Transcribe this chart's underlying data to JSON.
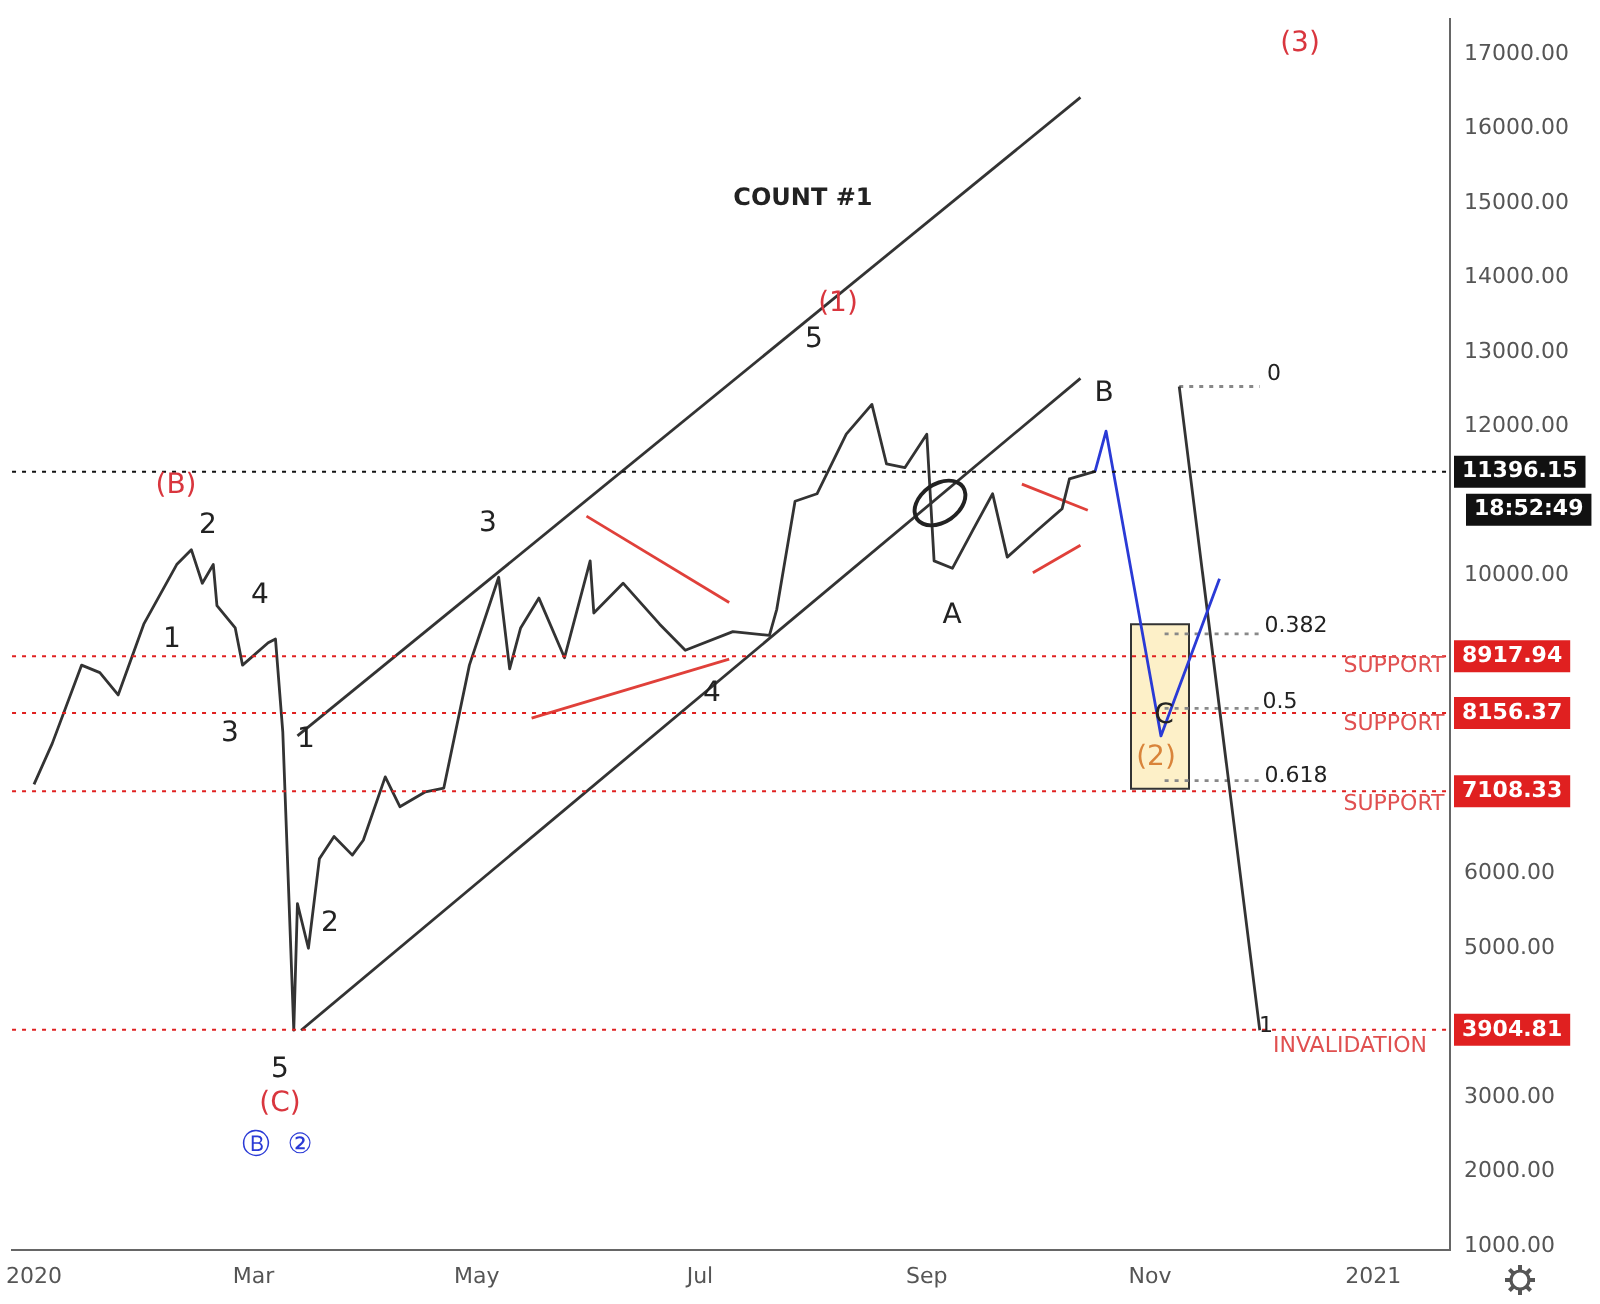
{
  "chart_data": {
    "type": "line",
    "title": "COUNT #1",
    "xlim": [
      "2019-12-26",
      "2021-01-22"
    ],
    "xticks": [
      {
        "value": "2020-01-01",
        "label": "2020"
      },
      {
        "value": "2020-03-01",
        "label": "Mar"
      },
      {
        "value": "2020-05-01",
        "label": "May"
      },
      {
        "value": "2020-07-01",
        "label": "Jul"
      },
      {
        "value": "2020-09-01",
        "label": "Sep"
      },
      {
        "value": "2020-11-01",
        "label": "Nov"
      },
      {
        "value": "2021-01-01",
        "label": "2021"
      }
    ],
    "ylim": [
      950,
      17470
    ],
    "yticks": [
      {
        "value": 1000,
        "label": "1000.00"
      },
      {
        "value": 2000,
        "label": "2000.00"
      },
      {
        "value": 3000,
        "label": "3000.00"
      },
      {
        "value": 5000,
        "label": "5000.00"
      },
      {
        "value": 6000,
        "label": "6000.00"
      },
      {
        "value": 10000,
        "label": "10000.00"
      },
      {
        "value": 12000,
        "label": "12000.00"
      },
      {
        "value": 13000,
        "label": "13000.00"
      },
      {
        "value": 14000,
        "label": "14000.00"
      },
      {
        "value": 15000,
        "label": "15000.00"
      },
      {
        "value": 16000,
        "label": "16000.00"
      },
      {
        "value": 17000,
        "label": "17000.00"
      }
    ],
    "grid": false,
    "legend": false,
    "marker": "none",
    "series": [
      {
        "color": "#333333",
        "x": [
          "2020-01-01",
          "2020-01-06",
          "2020-01-14",
          "2020-01-19",
          "2020-01-24",
          "2020-01-31",
          "2020-02-09",
          "2020-02-13",
          "2020-02-16",
          "2020-02-19",
          "2020-02-20",
          "2020-02-25",
          "2020-02-27",
          "2020-03-05",
          "2020-03-07",
          "2020-03-09",
          "2020-03-12",
          "2020-03-13",
          "2020-03-16",
          "2020-03-19",
          "2020-03-23",
          "2020-03-28",
          "2020-03-31",
          "2020-04-06",
          "2020-04-10",
          "2020-04-17",
          "2020-04-22",
          "2020-04-29",
          "2020-05-07",
          "2020-05-10",
          "2020-05-13",
          "2020-05-18",
          "2020-05-25",
          "2020-06-01",
          "2020-06-02",
          "2020-06-10",
          "2020-06-20",
          "2020-06-27",
          "2020-07-10",
          "2020-07-20",
          "2020-07-22",
          "2020-07-27",
          "2020-08-02",
          "2020-08-10",
          "2020-08-17",
          "2020-08-21",
          "2020-08-26",
          "2020-09-01",
          "2020-09-03",
          "2020-09-08",
          "2020-09-14",
          "2020-09-19",
          "2020-09-23",
          "2020-10-01",
          "2020-10-08",
          "2020-10-10",
          "2020-10-17"
        ],
        "values": [
          7200,
          7750,
          8800,
          8700,
          8400,
          9350,
          10150,
          10350,
          9900,
          10150,
          9600,
          9300,
          8800,
          9100,
          9150,
          7900,
          3900,
          5600,
          5000,
          6200,
          6500,
          6250,
          6450,
          7300,
          6900,
          7100,
          7150,
          8800,
          9980,
          8750,
          9300,
          9700,
          8900,
          10200,
          9500,
          9900,
          9350,
          9000,
          9250,
          9200,
          9550,
          11000,
          11100,
          11900,
          12300,
          11500,
          11450,
          11900,
          10200,
          10100,
          10650,
          11100,
          10250,
          10600,
          10900,
          11300,
          11400
        ]
      },
      {
        "color": "#333333",
        "x": [
          "2020-03-13",
          "2020-10-13"
        ],
        "values": [
          7850,
          16420
        ]
      },
      {
        "color": "#333333",
        "x": [
          "2020-03-14",
          "2020-10-13"
        ],
        "values": [
          3900,
          12650
        ]
      },
      {
        "color": "#e0403a",
        "x": [
          "2020-05-31",
          "2020-07-09"
        ],
        "values": [
          10800,
          9640
        ]
      },
      {
        "color": "#e0403a",
        "x": [
          "2020-05-16",
          "2020-07-09"
        ],
        "values": [
          8090,
          8880
        ]
      },
      {
        "color": "#e0403a",
        "x": [
          "2020-09-27",
          "2020-10-15"
        ],
        "values": [
          11230,
          10880
        ]
      },
      {
        "color": "#e0403a",
        "x": [
          "2020-09-30",
          "2020-10-13"
        ],
        "values": [
          10040,
          10410
        ]
      },
      {
        "color": "#2a3ad6",
        "x": [
          "2020-10-17",
          "2020-10-20",
          "2020-11-04",
          "2020-11-20"
        ],
        "values": [
          11400,
          11940,
          7850,
          9960
        ]
      },
      {
        "color": "#333333",
        "x": [
          "2020-11-09",
          "2020-12-01"
        ],
        "values": [
          12540,
          3900
        ]
      },
      {
        "color": "#888888",
        "line_style": "dotted",
        "x": [
          "2020-11-09",
          "2020-12-01"
        ],
        "values": [
          12540,
          12540
        ]
      },
      {
        "color": "#888888",
        "line_style": "dotted",
        "x": [
          "2020-11-05",
          "2020-12-01"
        ],
        "values": [
          9220,
          9220
        ]
      },
      {
        "color": "#888888",
        "line_style": "dotted",
        "x": [
          "2020-11-05",
          "2020-12-01"
        ],
        "values": [
          8220,
          8220
        ]
      },
      {
        "color": "#888888",
        "line_style": "dotted",
        "x": [
          "2020-11-05",
          "2020-12-01"
        ],
        "values": [
          7250,
          7250
        ]
      }
    ],
    "bands": [
      {
        "axis": "y",
        "from": 7140,
        "to": 9350,
        "color": "#fdf0c8"
      }
    ],
    "ref_lines": [
      {
        "axis": "y",
        "value": 11396.15,
        "label": "11396.15",
        "color": "#111111",
        "line_style": "dotted"
      },
      {
        "axis": "y",
        "value": 8917.94,
        "label": "8917.94",
        "color": "#e02020",
        "line_style": "dotted"
      },
      {
        "axis": "y",
        "value": 8156.37,
        "label": "8156.37",
        "color": "#e02020",
        "line_style": "dotted"
      },
      {
        "axis": "y",
        "value": 7108.33,
        "label": "7108.33",
        "color": "#e02020",
        "line_style": "dotted"
      },
      {
        "axis": "y",
        "value": 3904.81,
        "label": "3904.81",
        "color": "#e02020",
        "line_style": "dotted"
      }
    ],
    "annotations": [
      "(B)",
      "2",
      "1",
      "4",
      "3",
      "1",
      "2",
      "5",
      "(C)",
      "Ⓑ",
      "②",
      "3",
      "4",
      "(1)",
      "5",
      "A",
      "B",
      "C",
      "(2)",
      "(3)",
      "0",
      "0.382",
      "0.5",
      "0.618",
      "1",
      "18:52:49",
      "SUPPORT",
      "SUPPORT",
      "SUPPORT",
      "INVALIDATION"
    ]
  }
}
